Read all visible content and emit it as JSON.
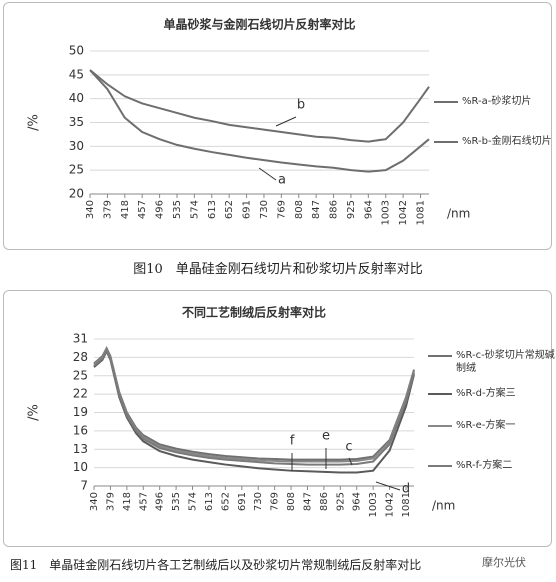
{
  "chart_data": [
    {
      "type": "line",
      "title": "单晶砂浆与金刚石线切片反射率对比",
      "caption": "图10　单晶硅金刚石线切片和砂浆切片反射率对比",
      "ylabel": "/%",
      "xlabel": "/nm",
      "grid": true,
      "ylim": [
        20,
        50
      ],
      "yticks": [
        20,
        25,
        30,
        35,
        40,
        45,
        50
      ],
      "xlim": [
        340,
        1100
      ],
      "xticks": [
        340,
        379,
        418,
        457,
        496,
        535,
        574,
        613,
        652,
        691,
        730,
        769,
        808,
        847,
        886,
        925,
        964,
        1003,
        1042,
        1081
      ],
      "x": [
        340,
        379,
        418,
        457,
        496,
        535,
        574,
        613,
        652,
        691,
        730,
        769,
        808,
        847,
        886,
        925,
        964,
        1003,
        1042,
        1081,
        1100
      ],
      "series": [
        {
          "name": "%R-a-砂浆切片",
          "color": "#6e6e6e",
          "values": [
            46,
            42,
            36,
            33,
            31.5,
            30.3,
            29.5,
            28.8,
            28.2,
            27.6,
            27.1,
            26.6,
            26.2,
            25.8,
            25.5,
            25,
            24.7,
            25,
            27,
            30,
            31.5
          ]
        },
        {
          "name": "%R-b-金刚石线切片",
          "color": "#6e6e6e",
          "values": [
            46,
            43,
            40.5,
            39,
            38,
            37,
            36,
            35.3,
            34.5,
            34,
            33.5,
            33,
            32.5,
            32,
            31.8,
            31.3,
            31,
            31.5,
            35,
            40,
            42.5
          ]
        }
      ],
      "annotations": [
        "b",
        "a"
      ]
    },
    {
      "type": "line",
      "title": "不同工艺制绒后反射率对比",
      "caption": "图11　单晶硅金刚石线切片各工艺制绒后以及砂浆切片常规制绒后反射率对比",
      "ylabel": "/%",
      "xlabel": "/nm",
      "grid": true,
      "ylim": [
        7,
        31
      ],
      "yticks": [
        7,
        10,
        13,
        16,
        19,
        22,
        25,
        28,
        31
      ],
      "xlim": [
        340,
        1100
      ],
      "xticks": [
        340,
        379,
        418,
        457,
        496,
        535,
        574,
        613,
        652,
        691,
        730,
        769,
        808,
        847,
        886,
        925,
        964,
        1003,
        1042,
        1081
      ],
      "x": [
        340,
        360,
        370,
        379,
        400,
        418,
        440,
        457,
        496,
        535,
        574,
        613,
        652,
        691,
        730,
        769,
        808,
        847,
        886,
        925,
        964,
        1003,
        1042,
        1081,
        1100
      ],
      "series": [
        {
          "name": "%R-c-砂浆切片常规碱制绒",
          "color": "#707070",
          "values": [
            27,
            28.2,
            29.5,
            28.2,
            22.3,
            19,
            16.5,
            15.3,
            13.8,
            13.1,
            12.6,
            12.2,
            11.9,
            11.7,
            11.5,
            11.4,
            11.3,
            11.3,
            11.3,
            11.3,
            11.4,
            11.8,
            14.5,
            21.5,
            26
          ]
        },
        {
          "name": "%R-d-方案三",
          "color": "#5a5a5a",
          "values": [
            26.4,
            27.6,
            29,
            27.6,
            21.5,
            18.2,
            15.6,
            14.3,
            12.7,
            11.9,
            11.3,
            10.9,
            10.5,
            10.2,
            9.9,
            9.7,
            9.5,
            9.4,
            9.3,
            9.2,
            9.2,
            9.5,
            12.8,
            20,
            25.2
          ]
        },
        {
          "name": "%R-e-方案一",
          "color": "#888888",
          "values": [
            26.8,
            28,
            29.3,
            28,
            22,
            18.7,
            16.2,
            15,
            13.5,
            12.8,
            12.3,
            11.9,
            11.6,
            11.4,
            11.2,
            11.1,
            11,
            11,
            11,
            11,
            11.1,
            11.5,
            14.2,
            21.2,
            25.8
          ]
        },
        {
          "name": "%R-f-方案二",
          "color": "#7a7a7a",
          "values": [
            26.6,
            27.8,
            29.1,
            27.8,
            21.8,
            18.5,
            16,
            14.7,
            13.2,
            12.5,
            12,
            11.6,
            11.3,
            11.1,
            10.9,
            10.7,
            10.6,
            10.5,
            10.5,
            10.5,
            10.6,
            11,
            13.8,
            20.8,
            25.5
          ]
        }
      ],
      "annotations": [
        "f",
        "e",
        "c",
        "d"
      ]
    }
  ],
  "watermark": "摩尔光伏"
}
